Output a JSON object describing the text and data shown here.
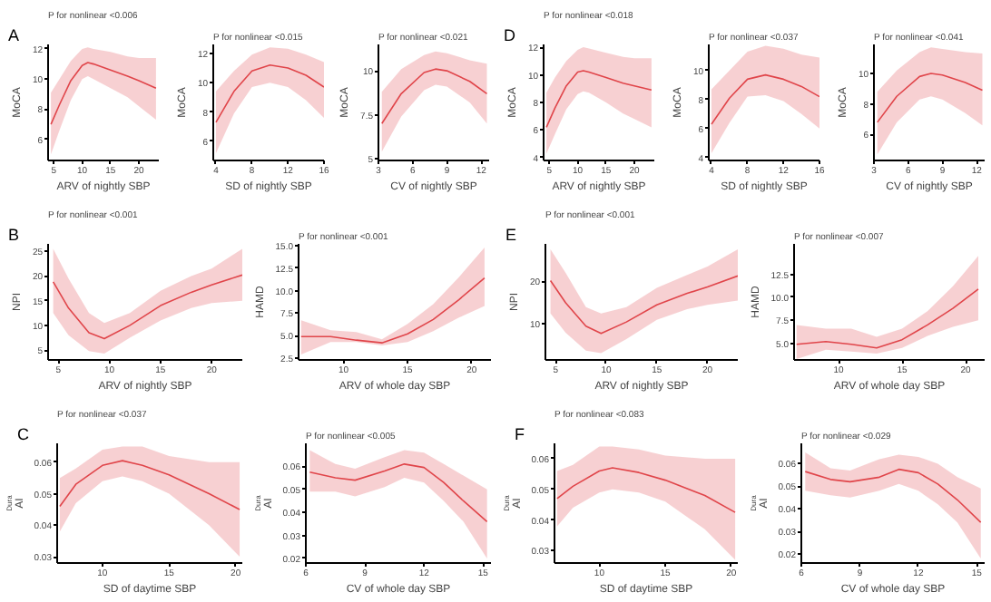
{
  "chart_data": [
    {
      "type": "line",
      "title": "P for nonlinear <0.006",
      "annotations": [
        "A"
      ],
      "xlabel": "ARV of nightly SBP",
      "ylabel": "MoCA",
      "xlim": [
        4,
        23.5
      ],
      "ylim": [
        4.6,
        12.3
      ],
      "xticks": [
        5,
        10,
        15,
        20
      ],
      "yticks": [
        6,
        8,
        10,
        12
      ],
      "series": [
        {
          "color": "#e0454a",
          "x": [
            4.5,
            6,
            8,
            10,
            11,
            12,
            15,
            18,
            20,
            23
          ],
          "values": [
            7.0,
            8.3,
            9.9,
            10.9,
            11.1,
            11.0,
            10.6,
            10.2,
            9.9,
            9.4
          ],
          "lower": [
            5.0,
            6.6,
            8.6,
            10.0,
            10.2,
            10.0,
            9.4,
            8.8,
            8.2,
            7.3
          ],
          "upper": [
            9.1,
            10.0,
            11.2,
            12.0,
            12.1,
            12.0,
            11.8,
            11.5,
            11.4,
            11.4
          ]
        }
      ]
    },
    {
      "type": "line",
      "title": "P for nonlinear <0.015",
      "xlabel": "SD of nightly SBP",
      "ylabel": "MoCA",
      "xlim": [
        3.7,
        16
      ],
      "ylim": [
        4.7,
        12.6
      ],
      "xticks": [
        4,
        8,
        12,
        16
      ],
      "yticks": [
        6,
        8,
        10,
        12
      ],
      "series": [
        {
          "color": "#e0454a",
          "x": [
            4,
            6,
            8,
            10,
            12,
            14,
            16
          ],
          "values": [
            7.3,
            9.4,
            10.8,
            11.2,
            11.0,
            10.5,
            9.7
          ],
          "lower": [
            5.2,
            7.9,
            9.7,
            10.0,
            9.7,
            8.8,
            7.6
          ],
          "upper": [
            9.4,
            10.8,
            11.9,
            12.4,
            12.3,
            11.9,
            11.4
          ]
        }
      ]
    },
    {
      "type": "line",
      "title": "P for nonlinear <0.021",
      "xlabel": "CV of nightly SBP",
      "ylabel": "MoCA",
      "xlim": [
        3,
        12.7
      ],
      "ylim": [
        4.9,
        11.5
      ],
      "xticks": [
        3,
        6,
        9,
        12
      ],
      "yticks": [
        5,
        7.5,
        10
      ],
      "series": [
        {
          "color": "#e0454a",
          "x": [
            3.3,
            5,
            7,
            8,
            9,
            11,
            12.5
          ],
          "values": [
            7.0,
            8.7,
            9.9,
            10.1,
            10.0,
            9.4,
            8.7
          ],
          "lower": [
            5.4,
            7.4,
            8.9,
            9.2,
            9.1,
            8.2,
            7.0
          ],
          "upper": [
            8.8,
            10.1,
            10.9,
            11.1,
            11.0,
            10.6,
            10.4
          ]
        }
      ]
    },
    {
      "type": "line",
      "title": "P for nonlinear <0.018",
      "annotations": [
        "D"
      ],
      "xlabel": "ARV of nightly SBP",
      "ylabel": "MoCA",
      "xlim": [
        4,
        23.5
      ],
      "ylim": [
        3.8,
        12.2
      ],
      "xticks": [
        5,
        10,
        15,
        20
      ],
      "yticks": [
        4,
        6,
        8,
        10,
        12
      ],
      "series": [
        {
          "color": "#e0454a",
          "x": [
            4.5,
            6,
            8,
            10,
            11,
            12,
            15,
            18,
            20,
            23
          ],
          "values": [
            6.2,
            7.6,
            9.2,
            10.2,
            10.3,
            10.2,
            9.8,
            9.4,
            9.2,
            8.9
          ],
          "lower": [
            4.3,
            5.7,
            7.5,
            8.6,
            8.8,
            8.7,
            8.0,
            7.2,
            6.8,
            6.2
          ],
          "upper": [
            8.7,
            9.8,
            11.0,
            11.8,
            12.0,
            11.9,
            11.6,
            11.3,
            11.2,
            11.2
          ]
        }
      ]
    },
    {
      "type": "line",
      "title": "P for nonlinear <0.037",
      "xlabel": "SD of nightly SBP",
      "ylabel": "MoCA",
      "xlim": [
        3.7,
        16
      ],
      "ylim": [
        3.8,
        11.8
      ],
      "xticks": [
        4,
        8,
        12,
        16
      ],
      "yticks": [
        4,
        6,
        8,
        10
      ],
      "series": [
        {
          "color": "#e0454a",
          "x": [
            4,
            6,
            8,
            10,
            12,
            14,
            16
          ],
          "values": [
            6.3,
            8.1,
            9.4,
            9.7,
            9.4,
            8.9,
            8.2
          ],
          "lower": [
            4.3,
            6.4,
            8.2,
            8.3,
            7.9,
            7.0,
            6.0
          ],
          "upper": [
            8.7,
            10.0,
            11.3,
            11.7,
            11.5,
            11.1,
            10.9
          ]
        }
      ]
    },
    {
      "type": "line",
      "title": "P for nonlinear <0.041",
      "xlabel": "CV of nightly SBP",
      "ylabel": "MoCA",
      "xlim": [
        3,
        12.7
      ],
      "ylim": [
        4.3,
        11.9
      ],
      "xticks": [
        3,
        6,
        9,
        12
      ],
      "yticks": [
        6,
        8,
        10
      ],
      "series": [
        {
          "color": "#e0454a",
          "x": [
            3.3,
            5,
            7,
            8,
            9,
            11,
            12.5
          ],
          "values": [
            6.8,
            8.5,
            9.8,
            10.0,
            9.9,
            9.4,
            8.9
          ],
          "lower": [
            4.7,
            6.8,
            8.3,
            8.5,
            8.3,
            7.4,
            6.6
          ],
          "upper": [
            8.8,
            10.2,
            11.4,
            11.7,
            11.6,
            11.4,
            11.3
          ]
        }
      ]
    },
    {
      "type": "line",
      "title": "P for nonlinear <0.001",
      "annotations": [
        "B"
      ],
      "xlabel": "ARV of nightly SBP",
      "ylabel": "NPI",
      "xlim": [
        4,
        23
      ],
      "ylim": [
        3.0,
        26.5
      ],
      "xticks": [
        5,
        10,
        15,
        20
      ],
      "yticks": [
        5,
        10,
        15,
        20,
        25
      ],
      "series": [
        {
          "color": "#e0454a",
          "x": [
            4.5,
            6,
            8,
            9.5,
            12,
            15,
            18,
            20,
            23
          ],
          "values": [
            18.8,
            13.5,
            8.5,
            7.3,
            10,
            14,
            16.7,
            18.2,
            20.2
          ],
          "lower": [
            12.5,
            8,
            4.8,
            4.3,
            7.5,
            11,
            13.5,
            14.5,
            15
          ],
          "upper": [
            25.5,
            19.5,
            12.5,
            10.5,
            12.5,
            17,
            20,
            21.5,
            25.5
          ]
        }
      ]
    },
    {
      "type": "line",
      "title": "P for nonlinear <0.001",
      "xlabel": "ARV of whole day SBP",
      "ylabel": "HAMD",
      "xlim": [
        6.5,
        21.5
      ],
      "ylim": [
        2.3,
        15.2
      ],
      "xticks": [
        10,
        15,
        20
      ],
      "yticks": [
        2.5,
        {
          "value": 5,
          "label": "5.0"
        },
        7.5,
        {
          "value": 10,
          "label": "10.0"
        },
        12.5,
        {
          "value": 15,
          "label": "15.0"
        }
      ],
      "series": [
        {
          "color": "#e0454a",
          "x": [
            6.7,
            9,
            11,
            13,
            15,
            17,
            19,
            21
          ],
          "values": [
            4.9,
            4.9,
            4.5,
            4.2,
            5.2,
            6.8,
            9,
            11.4
          ],
          "lower": [
            2.9,
            4.3,
            4.3,
            3.9,
            4.3,
            5.5,
            7,
            8.3
          ],
          "upper": [
            6.7,
            5.6,
            5.4,
            4.6,
            6.3,
            8.5,
            11.5,
            14.8
          ]
        }
      ]
    },
    {
      "type": "line",
      "title": "P for nonlinear <0.001",
      "annotations": [
        "E"
      ],
      "xlabel": "ARV of nightly SBP",
      "ylabel": "NPI",
      "xlim": [
        4,
        23
      ],
      "ylim": [
        1.6,
        28.8
      ],
      "xticks": [
        5,
        10,
        15,
        20
      ],
      "yticks": [
        10,
        20
      ],
      "series": [
        {
          "color": "#e0454a",
          "x": [
            4.5,
            6,
            8,
            9.5,
            12,
            15,
            18,
            20,
            23
          ],
          "values": [
            20.2,
            15,
            9.5,
            7.8,
            10.5,
            14.5,
            17.2,
            18.7,
            21.3
          ],
          "lower": [
            12.5,
            8,
            3.8,
            3.2,
            6.5,
            11,
            13.5,
            14.5,
            15.5
          ],
          "upper": [
            27.5,
            22,
            14,
            12.5,
            14,
            18.5,
            21.5,
            23.5,
            27.5
          ]
        }
      ]
    },
    {
      "type": "line",
      "title": "P for nonlinear <0.007",
      "xlabel": "ARV of whole day SBP",
      "ylabel": "HAMD",
      "xlim": [
        6.5,
        21.5
      ],
      "ylim": [
        3.2,
        15.8
      ],
      "xticks": [
        10,
        15,
        20
      ],
      "yticks": [
        {
          "value": 5,
          "label": "5.0"
        },
        7.5,
        {
          "value": 10,
          "label": "10.0"
        },
        12.5
      ],
      "series": [
        {
          "color": "#e0454a",
          "x": [
            6.7,
            9,
            11,
            13,
            15,
            17,
            19,
            21
          ],
          "values": [
            4.9,
            5.2,
            4.9,
            4.5,
            5.4,
            7,
            8.8,
            10.9
          ],
          "lower": [
            3.3,
            4.3,
            4.1,
            3.9,
            4.5,
            5.8,
            6.8,
            7.5
          ],
          "upper": [
            7,
            6.6,
            6.6,
            5.7,
            6.6,
            8.5,
            11.2,
            14.5
          ]
        }
      ]
    },
    {
      "type": "line",
      "title": "P for nonlinear <0.037",
      "annotations": [
        "C"
      ],
      "xlabel": "SD of daytime SBP",
      "ylabel": "AI$_{Dura}$",
      "xlim": [
        6.6,
        20.5
      ],
      "ylim": [
        0.028,
        0.066
      ],
      "xticks": [
        10,
        15,
        20
      ],
      "yticks": [
        0.03,
        0.04,
        0.05,
        0.06
      ],
      "series": [
        {
          "color": "#e0454a",
          "x": [
            6.8,
            8,
            10,
            11.5,
            13,
            15,
            18,
            20.3
          ],
          "values": [
            0.046,
            0.053,
            0.059,
            0.0605,
            0.059,
            0.056,
            0.05,
            0.045
          ],
          "lower": [
            0.038,
            0.047,
            0.054,
            0.0555,
            0.054,
            0.05,
            0.04,
            0.03
          ],
          "upper": [
            0.055,
            0.058,
            0.064,
            0.065,
            0.065,
            0.062,
            0.06,
            0.06
          ]
        }
      ]
    },
    {
      "type": "line",
      "title": "P for nonlinear <0.005",
      "xlabel": "CV of whole day SBP",
      "ylabel": "AI$_{Dura}$",
      "xlim": [
        6,
        15.4
      ],
      "ylim": [
        0.018,
        0.07
      ],
      "xticks": [
        6,
        9,
        12,
        15
      ],
      "yticks": [
        0.02,
        0.03,
        0.04,
        0.05,
        0.06
      ],
      "series": [
        {
          "color": "#e0454a",
          "x": [
            6.2,
            7.5,
            8.5,
            10,
            11,
            12,
            13,
            14,
            15.2
          ],
          "values": [
            0.0575,
            0.055,
            0.054,
            0.058,
            0.061,
            0.0595,
            0.053,
            0.045,
            0.036
          ],
          "lower": [
            0.049,
            0.049,
            0.047,
            0.051,
            0.055,
            0.053,
            0.045,
            0.036,
            0.02
          ],
          "upper": [
            0.067,
            0.061,
            0.059,
            0.064,
            0.067,
            0.066,
            0.061,
            0.056,
            0.05
          ]
        }
      ]
    },
    {
      "type": "line",
      "title": "P for nonlinear <0.083",
      "annotations": [
        "F"
      ],
      "xlabel": "SD of daytime SBP",
      "ylabel": "AI$_{Dura}$",
      "xlim": [
        6.6,
        20.5
      ],
      "ylim": [
        0.026,
        0.065
      ],
      "xticks": [
        10,
        15,
        20
      ],
      "yticks": [
        0.03,
        0.04,
        0.05,
        0.06
      ],
      "series": [
        {
          "color": "#e0454a",
          "x": [
            6.8,
            8,
            10,
            11,
            13,
            15,
            18,
            20.3
          ],
          "values": [
            0.047,
            0.051,
            0.056,
            0.057,
            0.0555,
            0.053,
            0.048,
            0.0425
          ],
          "lower": [
            0.038,
            0.044,
            0.049,
            0.05,
            0.049,
            0.046,
            0.037,
            0.027
          ],
          "upper": [
            0.056,
            0.058,
            0.064,
            0.064,
            0.063,
            0.061,
            0.06,
            0.06
          ]
        }
      ]
    },
    {
      "type": "line",
      "title": "P for nonlinear <0.029",
      "xlabel": "CV of whole day SBP",
      "ylabel": "AI$_{Dura}$",
      "xlim": [
        6,
        15.4
      ],
      "ylim": [
        0.016,
        0.069
      ],
      "xticks": [
        6,
        9,
        12,
        15
      ],
      "yticks": [
        0.02,
        0.03,
        0.04,
        0.05,
        0.06
      ],
      "series": [
        {
          "color": "#e0454a",
          "x": [
            6.2,
            7.5,
            8.5,
            10,
            11,
            12,
            13,
            14,
            15.2
          ],
          "values": [
            0.0565,
            0.053,
            0.052,
            0.054,
            0.0575,
            0.056,
            0.051,
            0.044,
            0.034
          ],
          "lower": [
            0.048,
            0.046,
            0.045,
            0.048,
            0.051,
            0.048,
            0.042,
            0.034,
            0.018
          ],
          "upper": [
            0.065,
            0.058,
            0.057,
            0.062,
            0.064,
            0.063,
            0.06,
            0.054,
            0.049
          ]
        }
      ]
    }
  ]
}
